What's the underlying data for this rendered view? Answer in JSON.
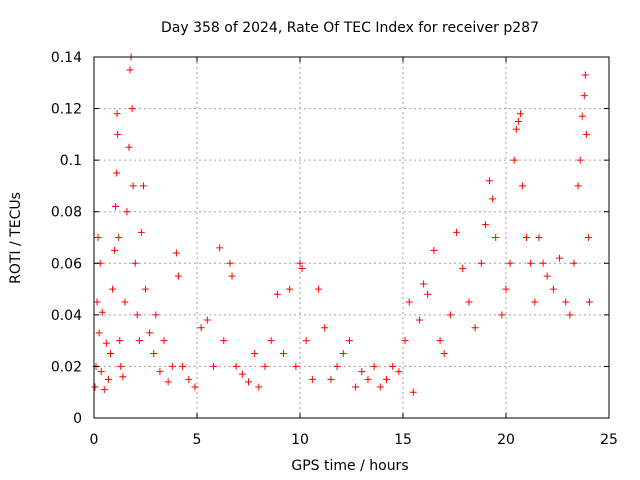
{
  "chart_data": {
    "type": "scatter",
    "title": "Day 358 of 2024, Rate Of TEC Index for receiver p287",
    "xlabel": "GPS time / hours",
    "ylabel": "ROTI / TECUs",
    "xlim": [
      0,
      25
    ],
    "ylim": [
      0,
      0.14
    ],
    "x_ticks": [
      0,
      5,
      10,
      15,
      20,
      25
    ],
    "x_tick_labels": [
      "0",
      "5",
      "10",
      "15",
      "20",
      "25"
    ],
    "y_ticks": [
      0,
      0.02,
      0.04,
      0.06,
      0.08,
      0.1,
      0.12,
      0.14
    ],
    "y_tick_labels": [
      "0",
      "0.02",
      "0.04",
      "0.06",
      "0.08",
      "0.1",
      "0.12",
      "0.14"
    ],
    "grid": true,
    "marker": "+",
    "color": "#ff0000",
    "series": [
      {
        "name": "ROTI",
        "points": [
          [
            0.05,
            0.012
          ],
          [
            0.1,
            0.02
          ],
          [
            0.15,
            0.045
          ],
          [
            0.2,
            0.07
          ],
          [
            0.25,
            0.033
          ],
          [
            0.3,
            0.06
          ],
          [
            0.35,
            0.018
          ],
          [
            0.4,
            0.041
          ],
          [
            0.5,
            0.011
          ],
          [
            0.6,
            0.029
          ],
          [
            0.7,
            0.015
          ],
          [
            0.8,
            0.025
          ],
          [
            0.9,
            0.05
          ],
          [
            1.0,
            0.065
          ],
          [
            1.05,
            0.082
          ],
          [
            1.1,
            0.095
          ],
          [
            1.12,
            0.118
          ],
          [
            1.15,
            0.11
          ],
          [
            1.2,
            0.07
          ],
          [
            1.25,
            0.03
          ],
          [
            1.3,
            0.02
          ],
          [
            1.4,
            0.016
          ],
          [
            1.5,
            0.045
          ],
          [
            1.6,
            0.08
          ],
          [
            1.7,
            0.105
          ],
          [
            1.75,
            0.135
          ],
          [
            1.8,
            0.14
          ],
          [
            1.85,
            0.12
          ],
          [
            1.9,
            0.09
          ],
          [
            2.0,
            0.06
          ],
          [
            2.1,
            0.04
          ],
          [
            2.2,
            0.03
          ],
          [
            2.3,
            0.072
          ],
          [
            2.4,
            0.09
          ],
          [
            2.5,
            0.05
          ],
          [
            2.7,
            0.033
          ],
          [
            2.9,
            0.025
          ],
          [
            3.0,
            0.04
          ],
          [
            3.2,
            0.018
          ],
          [
            3.4,
            0.03
          ],
          [
            3.6,
            0.014
          ],
          [
            3.8,
            0.02
          ],
          [
            4.0,
            0.064
          ],
          [
            4.1,
            0.055
          ],
          [
            4.3,
            0.02
          ],
          [
            4.6,
            0.015
          ],
          [
            4.9,
            0.012
          ],
          [
            5.2,
            0.035
          ],
          [
            5.5,
            0.038
          ],
          [
            5.8,
            0.02
          ],
          [
            6.1,
            0.066
          ],
          [
            6.3,
            0.03
          ],
          [
            6.6,
            0.06
          ],
          [
            6.7,
            0.055
          ],
          [
            6.9,
            0.02
          ],
          [
            7.2,
            0.017
          ],
          [
            7.5,
            0.014
          ],
          [
            7.8,
            0.025
          ],
          [
            8.0,
            0.012
          ],
          [
            8.3,
            0.02
          ],
          [
            8.6,
            0.03
          ],
          [
            8.9,
            0.048
          ],
          [
            9.2,
            0.025
          ],
          [
            9.5,
            0.05
          ],
          [
            9.8,
            0.02
          ],
          [
            10.0,
            0.06
          ],
          [
            10.1,
            0.058
          ],
          [
            10.3,
            0.03
          ],
          [
            10.6,
            0.015
          ],
          [
            10.9,
            0.05
          ],
          [
            11.2,
            0.035
          ],
          [
            11.5,
            0.015
          ],
          [
            11.8,
            0.02
          ],
          [
            12.1,
            0.025
          ],
          [
            12.4,
            0.03
          ],
          [
            12.7,
            0.012
          ],
          [
            13.0,
            0.018
          ],
          [
            13.3,
            0.015
          ],
          [
            13.6,
            0.02
          ],
          [
            13.9,
            0.012
          ],
          [
            14.2,
            0.015
          ],
          [
            14.5,
            0.02
          ],
          [
            14.8,
            0.018
          ],
          [
            15.1,
            0.03
          ],
          [
            15.3,
            0.045
          ],
          [
            15.5,
            0.01
          ],
          [
            15.8,
            0.038
          ],
          [
            16.0,
            0.052
          ],
          [
            16.2,
            0.048
          ],
          [
            16.5,
            0.065
          ],
          [
            16.8,
            0.03
          ],
          [
            17.0,
            0.025
          ],
          [
            17.3,
            0.04
          ],
          [
            17.6,
            0.072
          ],
          [
            17.9,
            0.058
          ],
          [
            18.2,
            0.045
          ],
          [
            18.5,
            0.035
          ],
          [
            18.8,
            0.06
          ],
          [
            19.0,
            0.075
          ],
          [
            19.2,
            0.092
          ],
          [
            19.35,
            0.085
          ],
          [
            19.5,
            0.07
          ],
          [
            19.8,
            0.04
          ],
          [
            20.0,
            0.05
          ],
          [
            20.2,
            0.06
          ],
          [
            20.4,
            0.1
          ],
          [
            20.5,
            0.112
          ],
          [
            20.6,
            0.115
          ],
          [
            20.7,
            0.118
          ],
          [
            20.8,
            0.09
          ],
          [
            21.0,
            0.07
          ],
          [
            21.2,
            0.06
          ],
          [
            21.4,
            0.045
          ],
          [
            21.6,
            0.07
          ],
          [
            21.8,
            0.06
          ],
          [
            22.0,
            0.055
          ],
          [
            22.3,
            0.05
          ],
          [
            22.6,
            0.062
          ],
          [
            22.9,
            0.045
          ],
          [
            23.1,
            0.04
          ],
          [
            23.3,
            0.06
          ],
          [
            23.5,
            0.09
          ],
          [
            23.6,
            0.1
          ],
          [
            23.7,
            0.117
          ],
          [
            23.8,
            0.125
          ],
          [
            23.85,
            0.133
          ],
          [
            23.9,
            0.11
          ],
          [
            24.0,
            0.07
          ],
          [
            24.05,
            0.045
          ]
        ]
      }
    ]
  }
}
